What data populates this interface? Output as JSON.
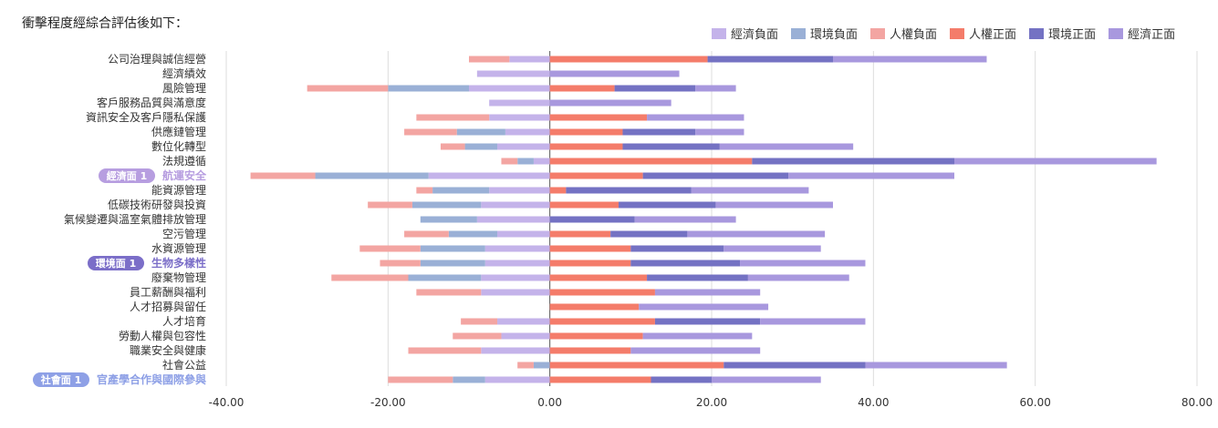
{
  "heading": "衝擊程度經綜合評估後如下：",
  "chart_data": {
    "type": "bar",
    "orientation": "horizontal",
    "stacked": true,
    "grid": true,
    "legend_position": "top-right",
    "xlim": [
      -40,
      80
    ],
    "x_ticks": [
      "-40.00",
      "-20.00",
      "0.00",
      "20.00",
      "40.00",
      "60.00",
      "80.00"
    ],
    "categories": [
      "公司治理與誠信經營",
      "經濟績效",
      "風險管理",
      "客戶服務品質與滿意度",
      "資訊安全及客戶隱私保護",
      "供應鏈管理",
      "數位化轉型",
      "法規遵循",
      "航運安全",
      "能資源管理",
      "低碳技術研發與投資",
      "氣候變遷與溫室氣體排放管理",
      "空污管理",
      "水資源管理",
      "生物多樣性",
      "廢棄物管理",
      "員工薪酬與福利",
      "人才招募與留任",
      "人才培育",
      "勞動人權與包容性",
      "職業安全與健康",
      "社會公益",
      "官產學合作與國際參與"
    ],
    "highlights": [
      {
        "category": "航運安全",
        "badge": "經濟面 1",
        "color": "#b79ee0"
      },
      {
        "category": "生物多樣性",
        "badge": "環境面 1",
        "color": "#7b6ec8"
      },
      {
        "category": "官產學合作與國際參與",
        "badge": "社會面 1",
        "color": "#8ea0e6"
      }
    ],
    "series": [
      {
        "name": "經濟負面",
        "color": "#c4b3ea",
        "side": "negative",
        "values": [
          -5,
          -9,
          -10,
          -7.5,
          -7.5,
          -5.5,
          -6.5,
          -2,
          -15,
          -7.5,
          -8.5,
          -9,
          -6.5,
          -8,
          -8,
          -8.5,
          -8.5,
          0,
          -6.5,
          -6,
          -8.5,
          0,
          -8
        ]
      },
      {
        "name": "環境負面",
        "color": "#9ab0d6",
        "side": "negative",
        "values": [
          0,
          0,
          -10,
          0,
          0,
          -6,
          -4,
          -2,
          -14,
          -7,
          -8.5,
          -7,
          -6,
          -8,
          -8,
          -9,
          0,
          0,
          0,
          0,
          0,
          -2,
          -4
        ]
      },
      {
        "name": "人權負面",
        "color": "#f3a5a2",
        "side": "negative",
        "values": [
          -5,
          0,
          -10,
          0,
          -9,
          -6.5,
          -3,
          -2,
          -8,
          -2,
          -5.5,
          0,
          -5.5,
          -7.5,
          -5,
          -9.5,
          -8,
          0,
          -4.5,
          -6,
          -9,
          -2,
          -8
        ]
      },
      {
        "name": "人權正面",
        "color": "#f47c6a",
        "side": "positive",
        "values": [
          19.5,
          0,
          8,
          0,
          12,
          9,
          9,
          25,
          11.5,
          2,
          8.5,
          0,
          7.5,
          10,
          10,
          12,
          13,
          11,
          13,
          11.5,
          10,
          21.5,
          12.5
        ]
      },
      {
        "name": "環境正面",
        "color": "#7472c3",
        "side": "positive",
        "values": [
          15.5,
          0,
          10,
          0,
          0,
          9,
          12,
          25,
          18,
          15.5,
          12,
          10.5,
          9.5,
          11.5,
          13.5,
          12.5,
          0,
          0,
          13,
          0,
          0,
          17.5,
          7.5
        ]
      },
      {
        "name": "經濟正面",
        "color": "#a898de",
        "side": "positive",
        "values": [
          19,
          16,
          5,
          15,
          12,
          6,
          16.5,
          25,
          20.5,
          14.5,
          14.5,
          12.5,
          17,
          12,
          15.5,
          12.5,
          13,
          16,
          13,
          13.5,
          16,
          17.5,
          13.5
        ]
      }
    ]
  }
}
